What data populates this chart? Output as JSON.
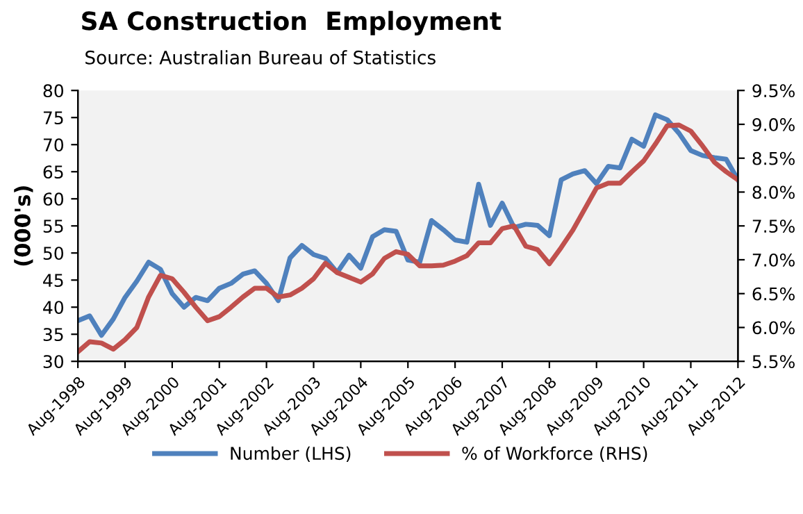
{
  "chart_data": {
    "type": "line",
    "title": "SA Construction  Employment",
    "subtitle": "Source: Australian Bureau of Statistics",
    "ylabel": "(000's)",
    "categories": [
      "Aug-1998",
      null,
      null,
      null,
      "Aug-1999",
      null,
      null,
      null,
      "Aug-2000",
      null,
      null,
      null,
      "Aug-2001",
      null,
      null,
      null,
      "Aug-2002",
      null,
      null,
      null,
      "Aug-2003",
      null,
      null,
      null,
      "Aug-2004",
      null,
      null,
      null,
      "Aug-2005",
      null,
      null,
      null,
      "Aug-2006",
      null,
      null,
      null,
      "Aug-2007",
      null,
      null,
      null,
      "Aug-2008",
      null,
      null,
      null,
      "Aug-2009",
      null,
      null,
      null,
      "Aug-2010",
      null,
      null,
      null,
      "Aug-2011",
      null,
      null,
      null,
      "Aug-2012"
    ],
    "series": [
      {
        "name": "Number (LHS)",
        "color": "#4f81bd",
        "values": [
          37.5,
          38.4,
          34.8,
          37.8,
          41.8,
          44.8,
          48.3,
          47.0,
          42.5,
          40.0,
          41.8,
          41.2,
          43.5,
          44.4,
          46.1,
          46.7,
          44.4,
          41.2,
          49.1,
          51.4,
          49.7,
          49.0,
          46.4,
          49.6,
          47.2,
          53.0,
          54.3,
          54.0,
          48.7,
          48.3,
          56.0,
          54.3,
          52.4,
          52.0,
          62.7,
          55.1,
          59.2,
          54.7,
          55.3,
          55.1,
          53.2,
          63.5,
          64.6,
          65.2,
          62.8,
          66.0,
          65.7,
          71.0,
          69.7,
          75.5,
          74.6,
          72.1,
          68.9,
          68.0,
          67.6,
          67.3,
          63.5
        ]
      },
      {
        "name": "% of Workforce (RHS)",
        "color": "#c0504d",
        "axis": "y2",
        "values": [
          5.64,
          5.79,
          5.77,
          5.68,
          5.82,
          6.0,
          6.45,
          6.77,
          6.72,
          6.52,
          6.3,
          6.1,
          6.16,
          6.3,
          6.45,
          6.58,
          6.58,
          6.45,
          6.48,
          6.58,
          6.72,
          6.95,
          6.81,
          6.74,
          6.67,
          6.79,
          7.02,
          7.12,
          7.08,
          6.91,
          6.91,
          6.92,
          6.98,
          7.06,
          7.25,
          7.25,
          7.46,
          7.5,
          7.2,
          7.15,
          6.94,
          7.18,
          7.44,
          7.75,
          8.06,
          8.13,
          8.13,
          8.3,
          8.46,
          8.71,
          8.98,
          8.99,
          8.9,
          8.68,
          8.44,
          8.3,
          8.18
        ]
      }
    ],
    "ylim": [
      30,
      80
    ],
    "yticks": [
      30,
      35,
      40,
      45,
      50,
      55,
      60,
      65,
      70,
      75,
      80
    ],
    "y2lim": [
      5.5,
      9.5
    ],
    "y2ticks": [
      {
        "value": 5.5,
        "label": "5.5%"
      },
      {
        "value": 6.0,
        "label": "6.0%"
      },
      {
        "value": 6.5,
        "label": "6.5%"
      },
      {
        "value": 7.0,
        "label": "7.0%"
      },
      {
        "value": 7.5,
        "label": "7.5%"
      },
      {
        "value": 8.0,
        "label": "8.0%"
      },
      {
        "value": 8.5,
        "label": "8.5%"
      },
      {
        "value": 9.0,
        "label": "9.0%"
      },
      {
        "value": 9.5,
        "label": "9.5%"
      }
    ],
    "grid": false,
    "legend": "bottom",
    "marker": "none",
    "line_style": "solid"
  }
}
